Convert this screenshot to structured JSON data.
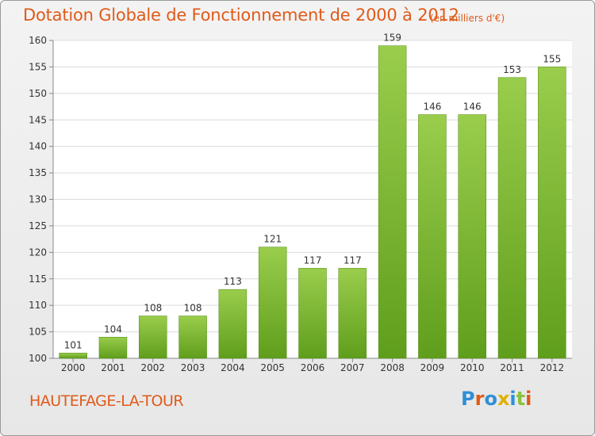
{
  "title": "Dotation Globale de Fonctionnement de 2000 à 2012",
  "unit_note": "(en milliers d'€)",
  "place": "HAUTEFAGE-LA-TOUR",
  "logo": {
    "text": "Proxiti",
    "letters": [
      "P",
      "r",
      "o",
      "x",
      "i",
      "t",
      "i"
    ],
    "colors": [
      "#2f8fd6",
      "#e05a18",
      "#2f8fd6",
      "#e0b000",
      "#2f8fd6",
      "#8bc23a",
      "#e05a18"
    ]
  },
  "colors": {
    "bar_top": "#9acd4c",
    "bar_bottom": "#5f9e1c",
    "title": "#e05a18"
  },
  "chart_data": {
    "type": "bar",
    "categories": [
      "2000",
      "2001",
      "2002",
      "2003",
      "2004",
      "2005",
      "2006",
      "2007",
      "2008",
      "2009",
      "2010",
      "2011",
      "2012"
    ],
    "values": [
      101,
      104,
      108,
      108,
      113,
      121,
      117,
      117,
      159,
      146,
      146,
      153,
      155
    ],
    "ylim": [
      100,
      160
    ],
    "yticks": [
      100,
      105,
      110,
      115,
      120,
      125,
      130,
      135,
      140,
      145,
      150,
      155,
      160
    ],
    "grid": true,
    "legend": "none"
  }
}
